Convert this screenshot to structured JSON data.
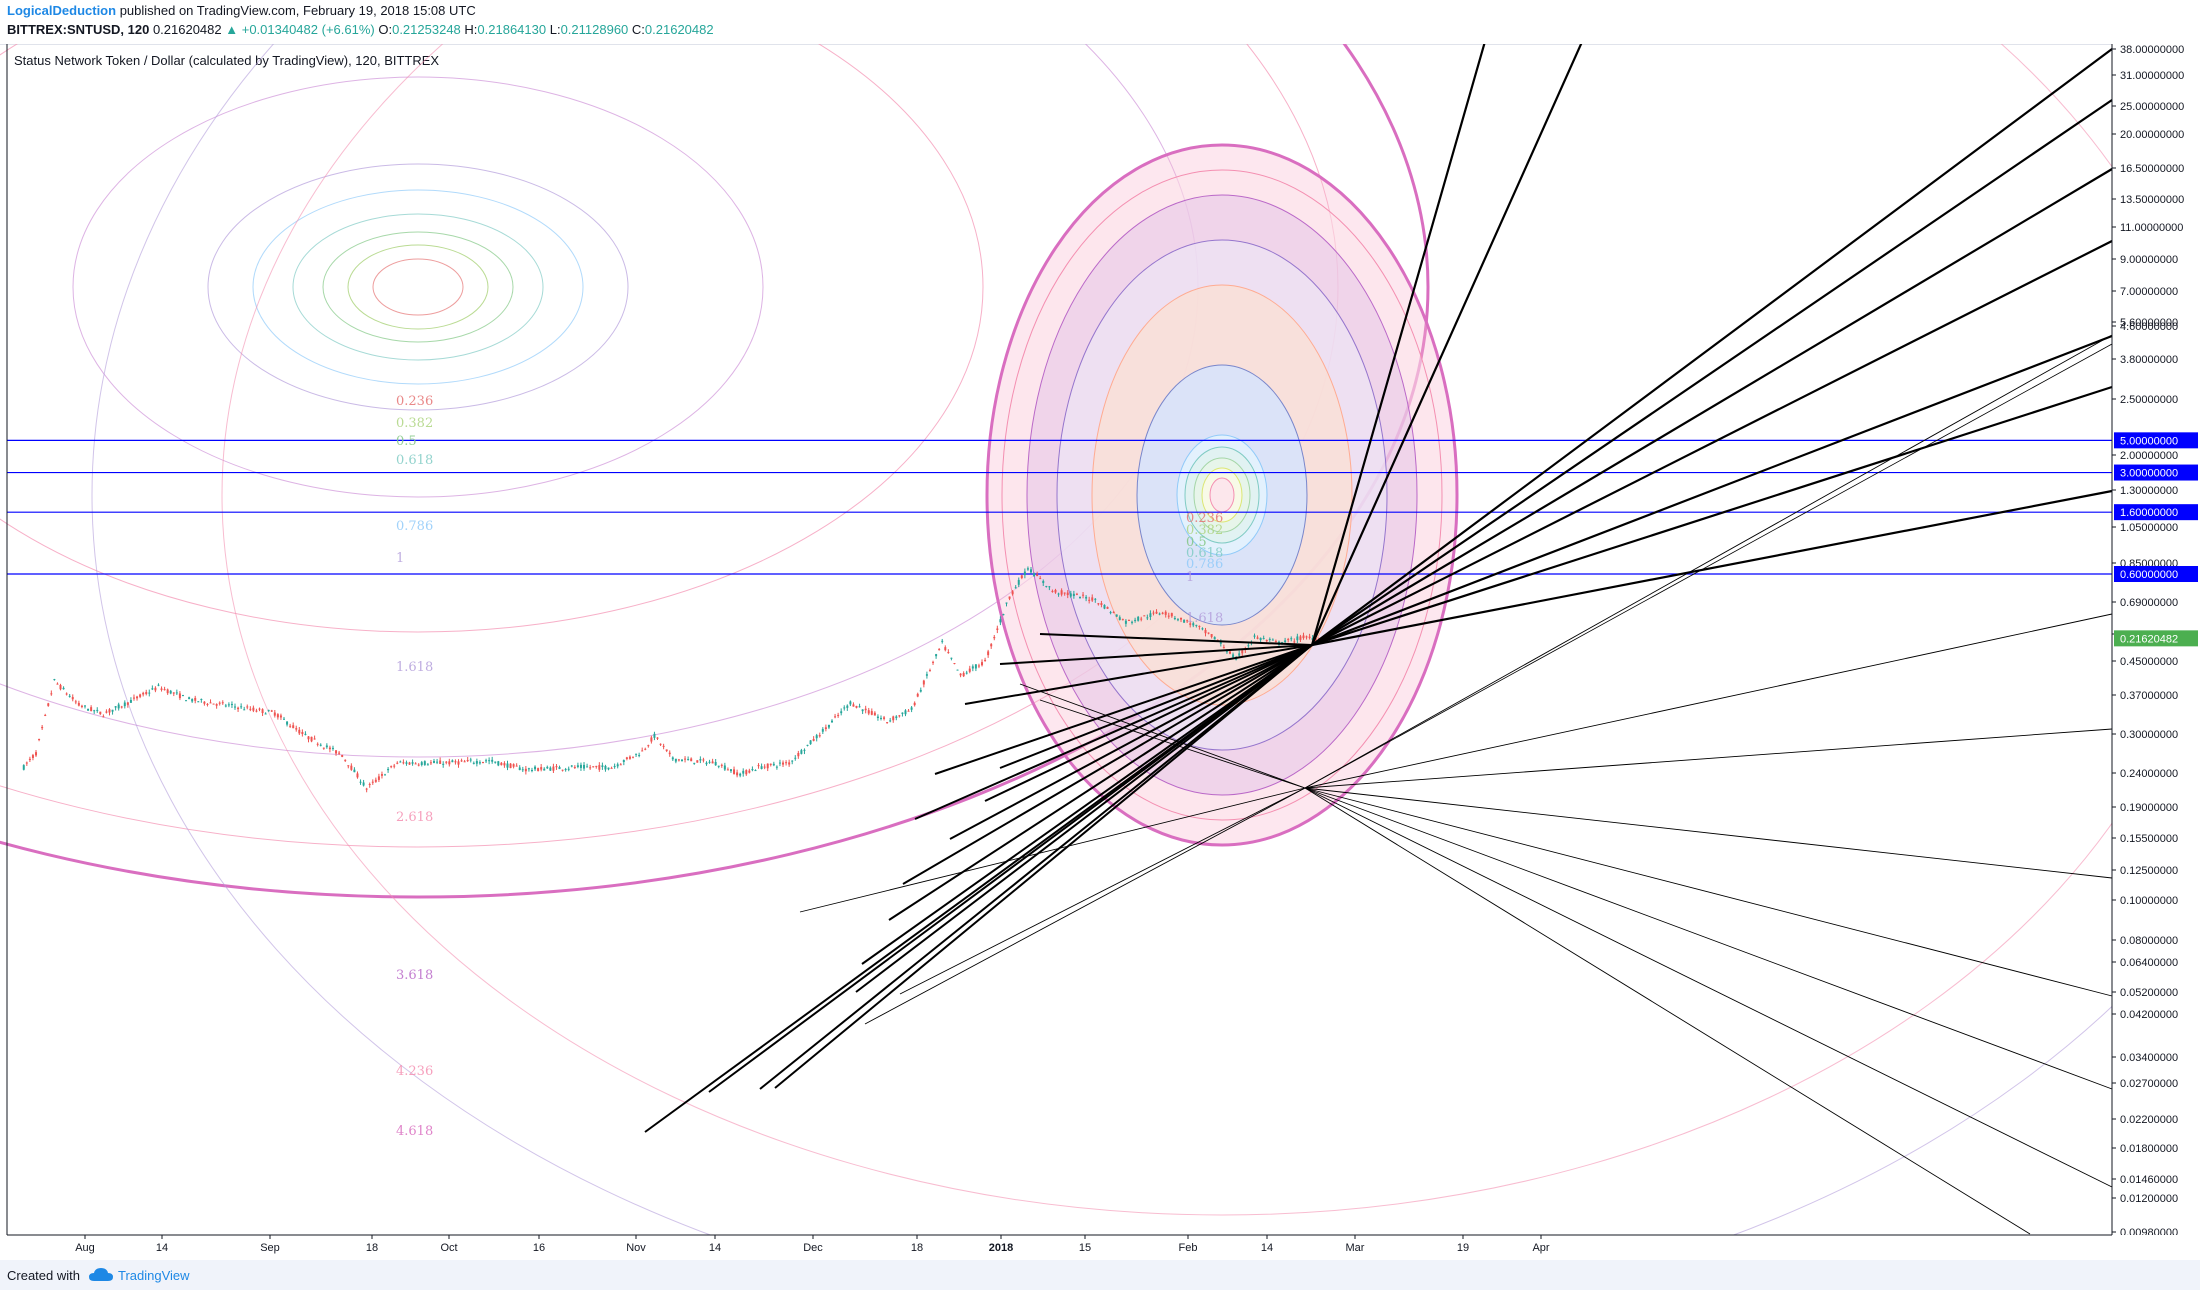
{
  "header": {
    "author": "LogicalDeduction",
    "published": "published on TradingView.com, February 19, 2018 15:08 UTC",
    "symbol": "BITTREX:SNTUSD, 120",
    "last": "0.21620482",
    "change": "▲ +0.01340482 (+6.61%)",
    "o_label": "O:",
    "o_value": "0.21253248",
    "h_label": "H:",
    "h_value": "0.21864130",
    "l_label": "L:",
    "l_value": "0.21128960",
    "c_label": "C:",
    "c_value": "0.21620482"
  },
  "footer": {
    "created_with": "Created with",
    "brand": "TradingView"
  },
  "colors": {
    "up": "#26a69a",
    "down": "#ef5350",
    "hline": "#0000ff",
    "fib_main": "#d96ec0",
    "price_badge": "#4caf50",
    "author": "#1e88e5"
  },
  "chart_data": {
    "type": "candlestick",
    "title": "Status Network Token / Dollar (calculated by TradingView), 120, BITTREX",
    "y_scale": "log",
    "ylim": [
      0.009,
      38
    ],
    "y_ticks": [
      "38.00000000",
      "31.00000000",
      "25.00000000",
      "20.00000000",
      "16.50000000",
      "13.50000000",
      "11.00000000",
      "9.00000000",
      "7.00000000",
      "5.60000000",
      "4.60000000",
      "3.80000000",
      "2.50000000",
      "2.00000000",
      "1.30000000",
      "1.05000000",
      "0.85000000",
      "0.69000000",
      "0.55000000",
      "0.45000000",
      "0.37000000",
      "0.30000000",
      "0.24000000",
      "0.19000000",
      "0.15500000",
      "0.12500000",
      "0.10000000",
      "0.08000000",
      "0.06400000",
      "0.05200000",
      "0.04200000",
      "0.03400000",
      "0.02700000",
      "0.02200000",
      "0.01800000",
      "0.01460000",
      "0.01200000",
      "0.00980000"
    ],
    "x_ticks": [
      "Aug",
      "14",
      "Sep",
      "18",
      "Oct",
      "16",
      "Nov",
      "14",
      "Dec",
      "18",
      "2018",
      "15",
      "Feb",
      "14",
      "Mar",
      "19",
      "Apr"
    ],
    "horizontal_levels": [
      {
        "value": 5.0,
        "label": "5.00000000"
      },
      {
        "value": 3.0,
        "label": "3.00000000"
      },
      {
        "value": 1.6,
        "label": "1.60000000"
      },
      {
        "value": 0.6,
        "label": "0.60000000"
      }
    ],
    "last_price_label": "0.21620482",
    "fib_levels_left": [
      "0.236",
      "0.382",
      "0.5",
      "0.618",
      "0.786",
      "1",
      "1.618",
      "2.618",
      "3.618",
      "4.236",
      "4.618"
    ],
    "fib_levels_right": [
      "0.236",
      "0.382",
      "0.5",
      "0.618",
      "0.786",
      "1",
      "1.618"
    ],
    "price_path": [
      [
        "2017-07-22",
        0.028
      ],
      [
        "2017-07-24",
        0.035
      ],
      [
        "2017-07-27",
        0.11
      ],
      [
        "2017-07-31",
        0.075
      ],
      [
        "2017-08-04",
        0.065
      ],
      [
        "2017-08-09",
        0.082
      ],
      [
        "2017-08-13",
        0.1
      ],
      [
        "2017-08-18",
        0.082
      ],
      [
        "2017-08-25",
        0.074
      ],
      [
        "2017-09-01",
        0.066
      ],
      [
        "2017-09-06",
        0.046
      ],
      [
        "2017-09-12",
        0.034
      ],
      [
        "2017-09-16",
        0.02
      ],
      [
        "2017-09-21",
        0.03
      ],
      [
        "2017-09-29",
        0.03
      ],
      [
        "2017-10-06",
        0.031
      ],
      [
        "2017-10-12",
        0.027
      ],
      [
        "2017-10-20",
        0.028
      ],
      [
        "2017-10-26",
        0.028
      ],
      [
        "2017-10-31",
        0.036
      ],
      [
        "2017-11-02",
        0.046
      ],
      [
        "2017-11-05",
        0.032
      ],
      [
        "2017-11-12",
        0.03
      ],
      [
        "2017-11-16",
        0.025
      ],
      [
        "2017-11-19",
        0.028
      ],
      [
        "2017-11-24",
        0.03
      ],
      [
        "2017-11-30",
        0.052
      ],
      [
        "2017-12-04",
        0.078
      ],
      [
        "2017-12-10",
        0.058
      ],
      [
        "2017-12-14",
        0.07
      ],
      [
        "2017-12-19",
        0.2
      ],
      [
        "2017-12-22",
        0.12
      ],
      [
        "2017-12-26",
        0.15
      ],
      [
        "2017-12-30",
        0.42
      ],
      [
        "2018-01-02",
        0.66
      ],
      [
        "2018-01-06",
        0.46
      ],
      [
        "2018-01-13",
        0.4
      ],
      [
        "2018-01-18",
        0.28
      ],
      [
        "2018-01-24",
        0.33
      ],
      [
        "2018-01-29",
        0.27
      ],
      [
        "2018-02-02",
        0.21
      ],
      [
        "2018-02-05",
        0.155
      ],
      [
        "2018-02-08",
        0.22
      ],
      [
        "2018-02-12",
        0.2
      ],
      [
        "2018-02-16",
        0.22
      ],
      [
        "2018-02-19",
        0.216
      ]
    ]
  }
}
